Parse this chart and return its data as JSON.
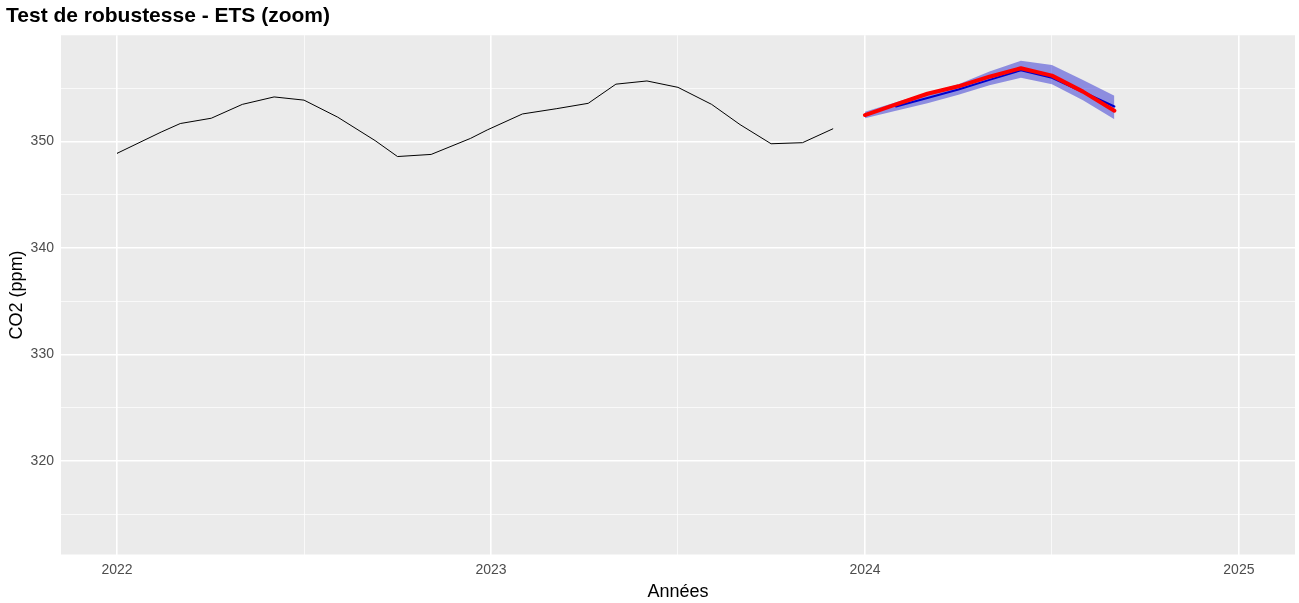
{
  "chart_data": {
    "type": "line",
    "title": "Test de robustesse - ETS (zoom)",
    "xlabel": "Années",
    "ylabel": "CO2 (ppm)",
    "xlim": [
      2021.85,
      2025.15
    ],
    "ylim": [
      311.2,
      360
    ],
    "xticks": [
      2022,
      {
        "value": 2022.5,
        "label": null
      },
      2023,
      {
        "value": 2023.5,
        "label": null
      },
      2024,
      {
        "value": 2024.5,
        "label": null
      },
      2025
    ],
    "yticks": [
      {
        "value": 315,
        "label": null
      },
      320,
      {
        "value": 325,
        "label": null
      },
      330,
      {
        "value": 335,
        "label": null
      },
      340,
      {
        "value": 345,
        "label": null
      },
      350,
      {
        "value": 355,
        "label": null
      }
    ],
    "grid": true,
    "legend": false,
    "marker": "none",
    "line_style": "solid",
    "series": [
      {
        "color": "#000000",
        "x": [
          2022.0,
          2022.118,
          2022.169,
          2022.252,
          2022.335,
          2022.42,
          2022.5,
          2022.59,
          2022.69,
          2022.75,
          2022.84,
          2022.945,
          2022.99,
          2023.084,
          2023.176,
          2023.26,
          2023.334,
          2023.417,
          2023.5,
          2023.59,
          2023.666,
          2023.749,
          2023.833,
          2023.914
        ],
        "values": [
          348.9,
          350.9,
          351.7,
          352.2,
          353.5,
          354.2,
          353.9,
          352.3,
          350.1,
          348.6,
          348.8,
          350.3,
          351.1,
          352.6,
          353.1,
          353.6,
          355.4,
          355.7,
          355.1,
          353.5,
          351.6,
          349.8,
          349.9,
          351.2
        ]
      },
      {
        "color": "#0000cc",
        "x": [
          2024.0,
          2024.083,
          2024.167,
          2024.25,
          2024.333,
          2024.417,
          2024.5,
          2024.583,
          2024.667
        ],
        "values": [
          null,
          353.3,
          354.1,
          354.9,
          355.8,
          356.7,
          356.0,
          null,
          353.3
        ],
        "lower": [
          352.2,
          352.9,
          353.6,
          354.4,
          355.3,
          356.0,
          355.4,
          353.9,
          352.1
        ],
        "upper": [
          352.8,
          353.7,
          354.6,
          355.4,
          356.6,
          357.6,
          357.2,
          355.8,
          354.3
        ]
      },
      {
        "color": "#ff0000",
        "x": [
          2024.0,
          2024.083,
          2024.167,
          2024.25,
          2024.333,
          2024.417,
          2024.5,
          2024.583,
          2024.667
        ],
        "values": [
          352.5,
          353.5,
          354.5,
          355.2,
          356.1,
          356.9,
          356.2,
          354.7,
          352.9
        ]
      }
    ]
  }
}
